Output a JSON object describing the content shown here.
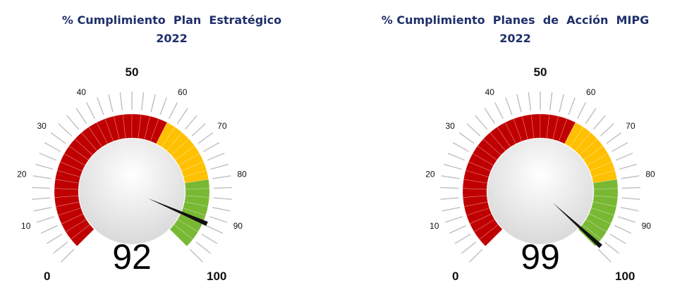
{
  "chart_data": [
    {
      "type": "gauge",
      "title": "% Cumplimiento  Plan  Estratégico",
      "subtitle": "2022",
      "value": 92,
      "value_label": "92",
      "range": [
        0,
        100
      ],
      "major_tick_labels": [
        "0",
        "10",
        "20",
        "30",
        "40",
        "50",
        "60",
        "70",
        "80",
        "90",
        "100"
      ],
      "bands": [
        {
          "from": 0,
          "to": 60,
          "color": "#c00000"
        },
        {
          "from": 60,
          "to": 80,
          "color": "#ffc000"
        },
        {
          "from": 80,
          "to": 100,
          "color": "#78b833"
        }
      ]
    },
    {
      "type": "gauge",
      "title": "% Cumplimiento  Planes  de  Acción  MIPG",
      "subtitle": "2022",
      "value": 99,
      "value_label": "99",
      "range": [
        0,
        100
      ],
      "major_tick_labels": [
        "0",
        "10",
        "20",
        "30",
        "40",
        "50",
        "60",
        "70",
        "80",
        "90",
        "100"
      ],
      "bands": [
        {
          "from": 0,
          "to": 60,
          "color": "#c00000"
        },
        {
          "from": 60,
          "to": 80,
          "color": "#ffc000"
        },
        {
          "from": 80,
          "to": 100,
          "color": "#78b833"
        }
      ]
    }
  ]
}
